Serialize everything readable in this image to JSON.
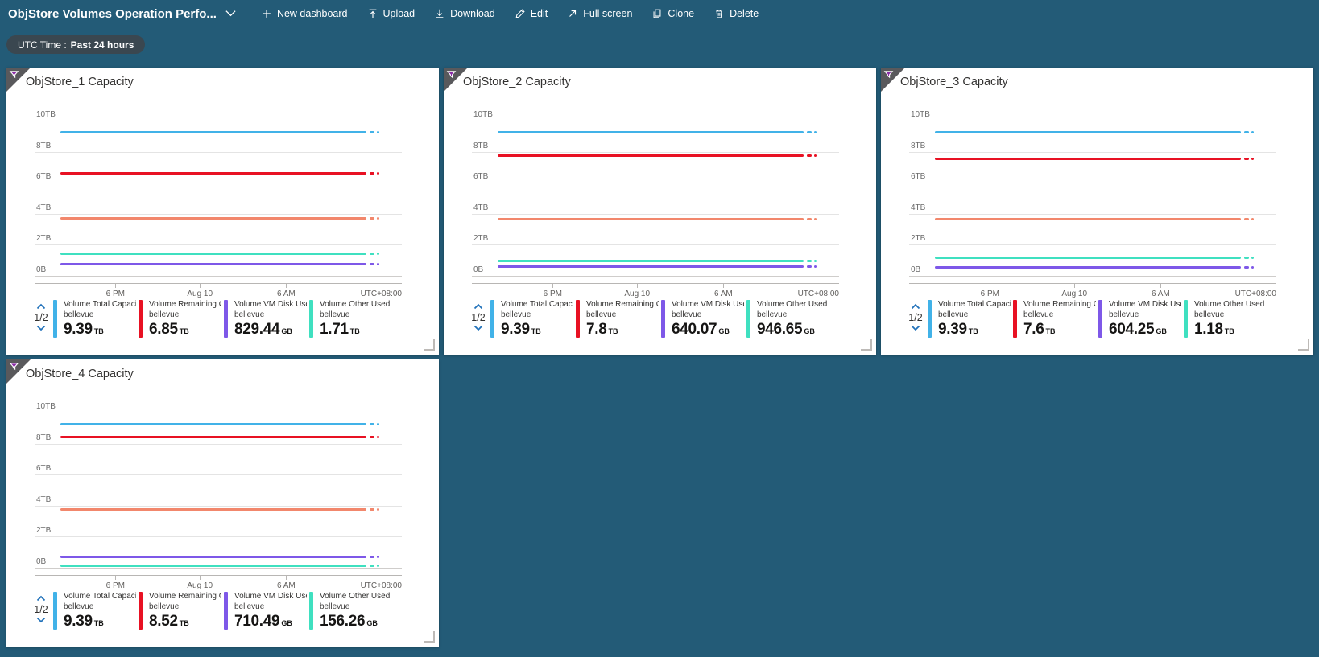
{
  "header": {
    "title": "ObjStore Volumes Operation Perfo...",
    "buttons": [
      {
        "label": "New dashboard",
        "icon": "plus-icon"
      },
      {
        "label": "Upload",
        "icon": "upload-icon"
      },
      {
        "label": "Download",
        "icon": "download-icon"
      },
      {
        "label": "Edit",
        "icon": "edit-pencil-icon"
      },
      {
        "label": "Full screen",
        "icon": "full-screen-icon"
      },
      {
        "label": "Clone",
        "icon": "clone-icon"
      },
      {
        "label": "Delete",
        "icon": "delete-trash-icon"
      }
    ]
  },
  "time_pill": {
    "prefix": "UTC Time :",
    "value": "Past 24 hours"
  },
  "axis": {
    "y_labels": [
      "10TB",
      "8TB",
      "6TB",
      "4TB",
      "2TB",
      "0B"
    ],
    "x_labels": [
      "6 PM",
      "Aug 10",
      "6 AM"
    ],
    "timezone": "UTC+08:00"
  },
  "colors": {
    "background": "#235b77",
    "pill": "#3a4750",
    "blue": "#41b2e8",
    "red": "#e81123",
    "orange": "#f2876c",
    "teal": "#3fe0c0",
    "purple": "#7e58e8",
    "pager_chevron": "#2272ba"
  },
  "tiles": [
    {
      "title": "ObjStore_1 Capacity",
      "pager": "1/2",
      "lines": [
        {
          "color": "blue",
          "tb": 9.25
        },
        {
          "color": "red",
          "tb": 6.6
        },
        {
          "color": "orange",
          "tb": 3.7
        },
        {
          "color": "teal",
          "tb": 1.45
        },
        {
          "color": "purple",
          "tb": 0.75
        }
      ],
      "legend": [
        {
          "color": "blue",
          "label": "Volume Total Capacit...",
          "resource": "bellevue",
          "value": "9.39",
          "unit": "TB"
        },
        {
          "color": "red",
          "label": "Volume Remaining Cap...",
          "resource": "bellevue",
          "value": "6.85",
          "unit": "TB"
        },
        {
          "color": "purple",
          "label": "Volume VM Disk Used ...",
          "resource": "bellevue",
          "value": "829.44",
          "unit": "GB"
        },
        {
          "color": "teal",
          "label": "Volume Other Used Ca...",
          "resource": "bellevue",
          "value": "1.71",
          "unit": "TB"
        }
      ]
    },
    {
      "title": "ObjStore_2 Capacity",
      "pager": "1/2",
      "lines": [
        {
          "color": "blue",
          "tb": 9.25
        },
        {
          "color": "red",
          "tb": 7.75
        },
        {
          "color": "orange",
          "tb": 3.65
        },
        {
          "color": "teal",
          "tb": 0.95
        },
        {
          "color": "purple",
          "tb": 0.6
        }
      ],
      "legend": [
        {
          "color": "blue",
          "label": "Volume Total Capacit...",
          "resource": "bellevue",
          "value": "9.39",
          "unit": "TB"
        },
        {
          "color": "red",
          "label": "Volume Remaining Cap...",
          "resource": "bellevue",
          "value": "7.8",
          "unit": "TB"
        },
        {
          "color": "purple",
          "label": "Volume VM Disk Used ...",
          "resource": "bellevue",
          "value": "640.07",
          "unit": "GB"
        },
        {
          "color": "teal",
          "label": "Volume Other Used Ca...",
          "resource": "bellevue",
          "value": "946.65",
          "unit": "GB"
        }
      ]
    },
    {
      "title": "ObjStore_3 Capacity",
      "pager": "1/2",
      "lines": [
        {
          "color": "blue",
          "tb": 9.25
        },
        {
          "color": "red",
          "tb": 7.55
        },
        {
          "color": "orange",
          "tb": 3.65
        },
        {
          "color": "teal",
          "tb": 1.15
        },
        {
          "color": "purple",
          "tb": 0.55
        }
      ],
      "legend": [
        {
          "color": "blue",
          "label": "Volume Total Capacit...",
          "resource": "bellevue",
          "value": "9.39",
          "unit": "TB"
        },
        {
          "color": "red",
          "label": "Volume Remaining Cap...",
          "resource": "bellevue",
          "value": "7.6",
          "unit": "TB"
        },
        {
          "color": "purple",
          "label": "Volume VM Disk Used ...",
          "resource": "bellevue",
          "value": "604.25",
          "unit": "GB"
        },
        {
          "color": "teal",
          "label": "Volume Other Used Ca...",
          "resource": "bellevue",
          "value": "1.18",
          "unit": "TB"
        }
      ]
    },
    {
      "title": "ObjStore_4 Capacity",
      "pager": "1/2",
      "lines": [
        {
          "color": "blue",
          "tb": 9.25
        },
        {
          "color": "red",
          "tb": 8.4
        },
        {
          "color": "orange",
          "tb": 3.75
        },
        {
          "color": "purple",
          "tb": 0.7
        },
        {
          "color": "teal",
          "tb": 0.12
        }
      ],
      "legend": [
        {
          "color": "blue",
          "label": "Volume Total Capacit...",
          "resource": "bellevue",
          "value": "9.39",
          "unit": "TB"
        },
        {
          "color": "red",
          "label": "Volume Remaining Cap...",
          "resource": "bellevue",
          "value": "8.52",
          "unit": "TB"
        },
        {
          "color": "purple",
          "label": "Volume VM Disk Used ...",
          "resource": "bellevue",
          "value": "710.49",
          "unit": "GB"
        },
        {
          "color": "teal",
          "label": "Volume Other Used Ca...",
          "resource": "bellevue",
          "value": "156.26",
          "unit": "GB"
        }
      ]
    }
  ],
  "chart_data": [
    {
      "type": "line",
      "title": "ObjStore_1 Capacity",
      "x_ticks": [
        "6 PM",
        "Aug 10",
        "6 AM"
      ],
      "timezone": "UTC+08:00",
      "y_ticks": [
        "0B",
        "2TB",
        "4TB",
        "6TB",
        "8TB",
        "10TB"
      ],
      "ylim_tb": [
        0,
        10
      ],
      "series": [
        {
          "name": "Volume Total Capacit...",
          "resource": "bellevue",
          "latest": "9.39 TB",
          "approx_level_tb": 9.25,
          "color": "blue"
        },
        {
          "name": "Volume Remaining Cap...",
          "resource": "bellevue",
          "latest": "6.85 TB",
          "approx_level_tb": 6.6,
          "color": "red"
        },
        {
          "name": "Volume VM Disk Used ...",
          "resource": "bellevue",
          "latest": "829.44 GB",
          "approx_level_tb": 0.75,
          "color": "purple"
        },
        {
          "name": "Volume Other Used Ca...",
          "resource": "bellevue",
          "latest": "1.71 TB",
          "approx_level_tb": 1.45,
          "color": "teal"
        },
        {
          "name": "",
          "latest": "",
          "approx_level_tb": 3.7,
          "color": "orange"
        }
      ]
    },
    {
      "type": "line",
      "title": "ObjStore_2 Capacity",
      "x_ticks": [
        "6 PM",
        "Aug 10",
        "6 AM"
      ],
      "timezone": "UTC+08:00",
      "y_ticks": [
        "0B",
        "2TB",
        "4TB",
        "6TB",
        "8TB",
        "10TB"
      ],
      "ylim_tb": [
        0,
        10
      ],
      "series": [
        {
          "name": "Volume Total Capacit...",
          "resource": "bellevue",
          "latest": "9.39 TB",
          "approx_level_tb": 9.25,
          "color": "blue"
        },
        {
          "name": "Volume Remaining Cap...",
          "resource": "bellevue",
          "latest": "7.8 TB",
          "approx_level_tb": 7.75,
          "color": "red"
        },
        {
          "name": "Volume VM Disk Used ...",
          "resource": "bellevue",
          "latest": "640.07 GB",
          "approx_level_tb": 0.6,
          "color": "purple"
        },
        {
          "name": "Volume Other Used Ca...",
          "resource": "bellevue",
          "latest": "946.65 GB",
          "approx_level_tb": 0.95,
          "color": "teal"
        },
        {
          "name": "",
          "latest": "",
          "approx_level_tb": 3.65,
          "color": "orange"
        }
      ]
    },
    {
      "type": "line",
      "title": "ObjStore_3 Capacity",
      "x_ticks": [
        "6 PM",
        "Aug 10",
        "6 AM"
      ],
      "timezone": "UTC+08:00",
      "y_ticks": [
        "0B",
        "2TB",
        "4TB",
        "6TB",
        "8TB",
        "10TB"
      ],
      "ylim_tb": [
        0,
        10
      ],
      "series": [
        {
          "name": "Volume Total Capacit...",
          "resource": "bellevue",
          "latest": "9.39 TB",
          "approx_level_tb": 9.25,
          "color": "blue"
        },
        {
          "name": "Volume Remaining Cap...",
          "resource": "bellevue",
          "latest": "7.6 TB",
          "approx_level_tb": 7.55,
          "color": "red"
        },
        {
          "name": "Volume VM Disk Used ...",
          "resource": "bellevue",
          "latest": "604.25 GB",
          "approx_level_tb": 0.55,
          "color": "purple"
        },
        {
          "name": "Volume Other Used Ca...",
          "resource": "bellevue",
          "latest": "1.18 TB",
          "approx_level_tb": 1.15,
          "color": "teal"
        },
        {
          "name": "",
          "latest": "",
          "approx_level_tb": 3.65,
          "color": "orange"
        }
      ]
    },
    {
      "type": "line",
      "title": "ObjStore_4 Capacity",
      "x_ticks": [
        "6 PM",
        "Aug 10",
        "6 AM"
      ],
      "timezone": "UTC+08:00",
      "y_ticks": [
        "0B",
        "2TB",
        "4TB",
        "6TB",
        "8TB",
        "10TB"
      ],
      "ylim_tb": [
        0,
        10
      ],
      "series": [
        {
          "name": "Volume Total Capacit...",
          "resource": "bellevue",
          "latest": "9.39 TB",
          "approx_level_tb": 9.25,
          "color": "blue"
        },
        {
          "name": "Volume Remaining Cap...",
          "resource": "bellevue",
          "latest": "8.52 TB",
          "approx_level_tb": 8.4,
          "color": "red"
        },
        {
          "name": "Volume VM Disk Used ...",
          "resource": "bellevue",
          "latest": "710.49 GB",
          "approx_level_tb": 0.7,
          "color": "purple"
        },
        {
          "name": "Volume Other Used Ca...",
          "resource": "bellevue",
          "latest": "156.26 GB",
          "approx_level_tb": 0.12,
          "color": "teal"
        },
        {
          "name": "",
          "latest": "",
          "approx_level_tb": 3.75,
          "color": "orange"
        }
      ]
    }
  ]
}
